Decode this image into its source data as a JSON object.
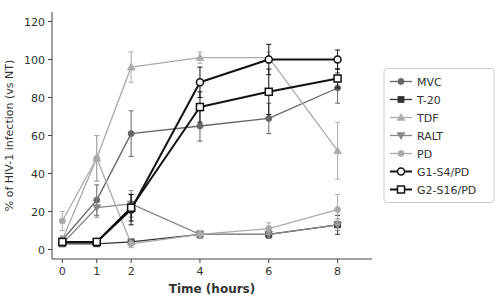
{
  "chart_data": {
    "type": "line",
    "xlabel": "Time (hours)",
    "ylabel": "% of HIV-1 infection (vs NT)",
    "x": [
      0,
      1,
      2,
      4,
      6,
      8
    ],
    "series": [
      {
        "name": "MVC",
        "color": "#666666",
        "marker": "circle",
        "values": [
          5,
          26,
          61,
          65,
          69,
          85
        ],
        "errors": [
          2,
          8,
          12,
          8,
          8,
          8
        ]
      },
      {
        "name": "T-20",
        "color": "#333333",
        "marker": "square",
        "values": [
          3,
          3,
          4,
          8,
          8,
          13
        ],
        "errors": [
          1,
          1,
          1,
          2,
          2,
          5
        ]
      },
      {
        "name": "TDF",
        "color": "#aaaaaa",
        "marker": "triangle-up",
        "values": [
          5,
          48,
          96,
          101,
          101,
          52
        ],
        "errors": [
          2,
          12,
          8,
          3,
          3,
          15
        ]
      },
      {
        "name": "RALT",
        "color": "#888888",
        "marker": "triangle-down",
        "values": [
          3,
          22,
          24,
          8,
          8,
          13
        ],
        "errors": [
          1,
          5,
          7,
          2,
          2,
          3
        ]
      },
      {
        "name": "PD",
        "color": "#aaaaaa",
        "marker": "circle",
        "values": [
          15,
          48,
          3,
          8,
          11,
          21
        ],
        "errors": [
          5,
          12,
          2,
          2,
          3,
          8
        ]
      },
      {
        "name": "G1-S4/PD",
        "color": "#111111",
        "marker": "circle-open",
        "values": [
          4,
          4,
          21,
          88,
          100,
          100
        ],
        "errors": [
          1,
          1,
          8,
          8,
          8,
          5
        ]
      },
      {
        "name": "G2-S16/PD",
        "color": "#111111",
        "marker": "square-open",
        "values": [
          4,
          4,
          22,
          75,
          83,
          90
        ],
        "errors": [
          1,
          1,
          7,
          8,
          12,
          5
        ]
      }
    ],
    "xlim": [
      -0.3,
      9.0
    ],
    "ylim": [
      -5,
      125
    ],
    "xticks": [
      0,
      1,
      2,
      4,
      6,
      8
    ],
    "yticks": [
      0,
      20,
      40,
      60,
      80,
      100,
      120
    ],
    "grid": false,
    "legend": "right"
  }
}
